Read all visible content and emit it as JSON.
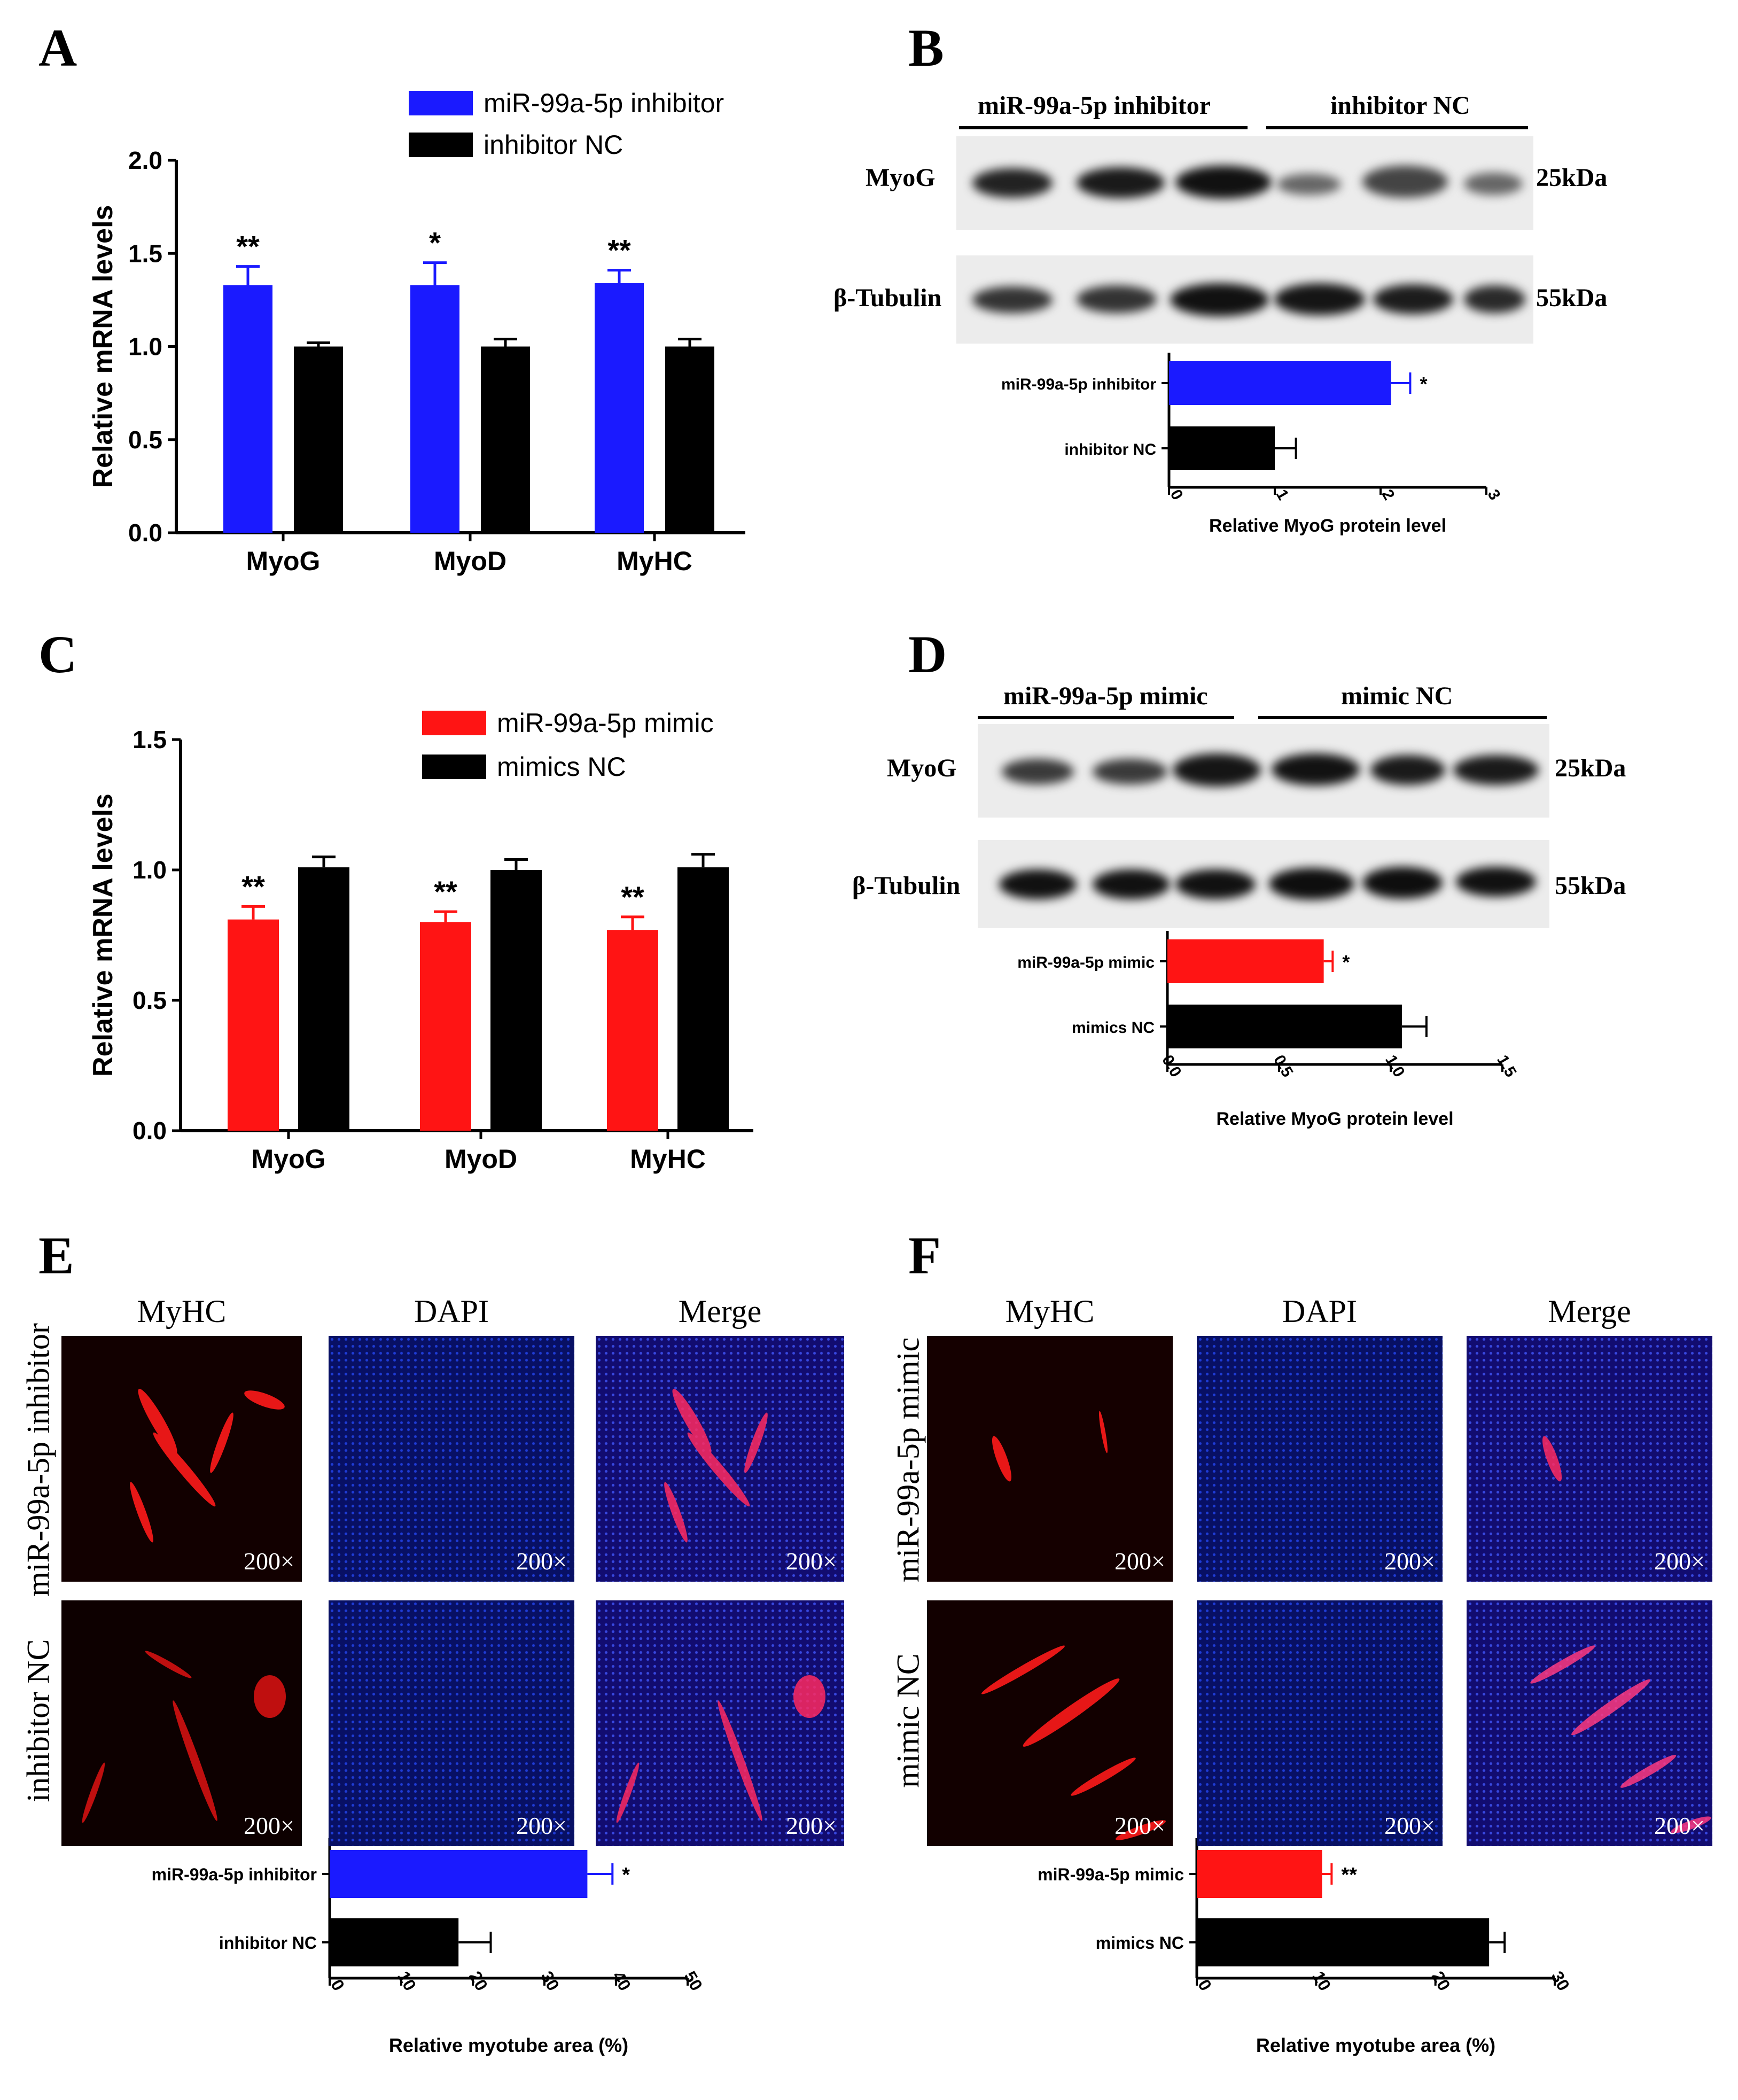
{
  "panels": {
    "A": "A",
    "B": "B",
    "C": "C",
    "D": "D",
    "E": "E",
    "F": "F"
  },
  "colors": {
    "inhibitor": "#1a1aff",
    "mimic": "#ff1414",
    "control": "#000000"
  },
  "blots": {
    "B": {
      "group1": "miR-99a-5p inhibitor",
      "group2": "inhibitor NC",
      "row1": "MyoG",
      "row2": "β-Tubulin",
      "size1": "25kDa",
      "size2": "55kDa"
    },
    "D": {
      "group1": "miR-99a-5p mimic",
      "group2": "mimic NC",
      "row1": "MyoG",
      "row2": "β-Tubulin",
      "size1": "25kDa",
      "size2": "55kDa"
    }
  },
  "micro": {
    "cols": [
      "MyHC",
      "DAPI",
      "Merge"
    ],
    "mag": "200×",
    "E": {
      "row1": "miR-99a-5p inhibitor",
      "row2": "inhibitor NC"
    },
    "F": {
      "row1": "miR-99a-5p mimic",
      "row2": "mimic NC"
    }
  },
  "chart_data": [
    {
      "id": "A",
      "type": "bar",
      "title": "",
      "ylabel": "Relative mRNA levels",
      "xlabel": "",
      "categories": [
        "MyoG",
        "MyoD",
        "MyHC"
      ],
      "ylim": [
        0,
        2.0
      ],
      "yticks": [
        "0.0",
        "0.5",
        "1.0",
        "1.5",
        "2.0"
      ],
      "series": [
        {
          "name": "miR-99a-5p inhibitor",
          "color": "#1a1aff",
          "values": [
            1.33,
            1.33,
            1.34
          ],
          "errors": [
            0.1,
            0.12,
            0.07
          ],
          "sig": [
            "**",
            "*",
            "**"
          ]
        },
        {
          "name": "inhibitor NC",
          "color": "#000000",
          "values": [
            1.0,
            1.0,
            1.0
          ],
          "errors": [
            0.02,
            0.04,
            0.04
          ],
          "sig": [
            "",
            "",
            ""
          ]
        }
      ],
      "legend": "top-right"
    },
    {
      "id": "B",
      "type": "bar",
      "orientation": "horizontal",
      "xlabel": "Relative MyoG protein level",
      "ylabel": "",
      "categories": [
        "miR-99a-5p inhibitor",
        "inhibitor NC"
      ],
      "xlim": [
        0,
        3
      ],
      "xticks": [
        "0",
        "1",
        "2",
        "3"
      ],
      "values": [
        2.1,
        1.0
      ],
      "errors": [
        0.18,
        0.2
      ],
      "colors": [
        "#1a1aff",
        "#000000"
      ],
      "sig": [
        "*",
        ""
      ]
    },
    {
      "id": "C",
      "type": "bar",
      "title": "",
      "ylabel": "Relative mRNA levels",
      "xlabel": "",
      "categories": [
        "MyoG",
        "MyoD",
        "MyHC"
      ],
      "ylim": [
        0,
        1.5
      ],
      "yticks": [
        "0.0",
        "0.5",
        "1.0",
        "1.5"
      ],
      "series": [
        {
          "name": "miR-99a-5p mimic",
          "color": "#ff1414",
          "values": [
            0.81,
            0.8,
            0.77
          ],
          "errors": [
            0.05,
            0.04,
            0.05
          ],
          "sig": [
            "**",
            "**",
            "**"
          ]
        },
        {
          "name": "mimics NC",
          "color": "#000000",
          "values": [
            1.01,
            1.0,
            1.01
          ],
          "errors": [
            0.04,
            0.04,
            0.05
          ],
          "sig": [
            "",
            "",
            ""
          ]
        }
      ],
      "legend": "top-right"
    },
    {
      "id": "D",
      "type": "bar",
      "orientation": "horizontal",
      "xlabel": "Relative MyoG protein level",
      "ylabel": "",
      "categories": [
        "miR-99a-5p mimic",
        "mimics NC"
      ],
      "xlim": [
        0,
        1.5
      ],
      "xticks": [
        "0.0",
        "0.5",
        "1.0",
        "1.5"
      ],
      "values": [
        0.7,
        1.05
      ],
      "errors": [
        0.04,
        0.11
      ],
      "colors": [
        "#ff1414",
        "#000000"
      ],
      "sig": [
        "*",
        ""
      ]
    },
    {
      "id": "E",
      "type": "bar",
      "orientation": "horizontal",
      "xlabel": "Relative myotube area (%)",
      "ylabel": "",
      "categories": [
        "miR-99a-5p inhibitor",
        "inhibitor NC"
      ],
      "xlim": [
        0,
        50
      ],
      "xticks": [
        "0",
        "10",
        "20",
        "30",
        "40",
        "50"
      ],
      "values": [
        36,
        18
      ],
      "errors": [
        3.5,
        4.5
      ],
      "colors": [
        "#1a1aff",
        "#000000"
      ],
      "sig": [
        "*",
        ""
      ]
    },
    {
      "id": "F",
      "type": "bar",
      "orientation": "horizontal",
      "xlabel": "Relative myotube area (%)",
      "ylabel": "",
      "categories": [
        "miR-99a-5p mimic",
        "mimics NC"
      ],
      "xlim": [
        0,
        30
      ],
      "xticks": [
        "0",
        "10",
        "20",
        "30"
      ],
      "values": [
        10.5,
        24.5
      ],
      "errors": [
        0.8,
        1.3
      ],
      "colors": [
        "#ff1414",
        "#000000"
      ],
      "sig": [
        "**",
        ""
      ]
    }
  ]
}
